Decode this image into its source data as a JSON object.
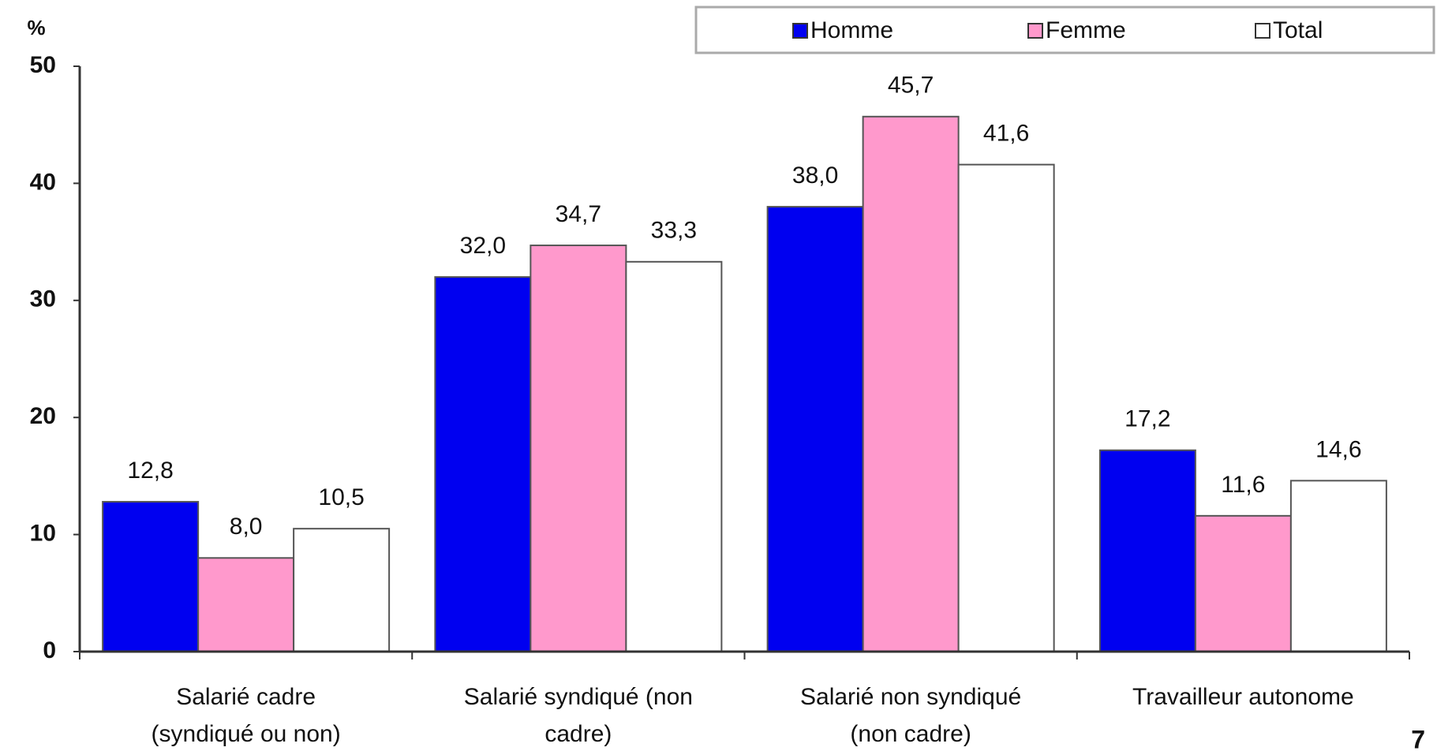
{
  "chart_data": {
    "type": "bar",
    "y_label": "%",
    "categories": [
      [
        "Salarié cadre",
        "(syndiqué ou non)"
      ],
      [
        "Salarié syndiqué (non",
        "cadre)"
      ],
      [
        "Salarié non syndiqué",
        "(non cadre)"
      ],
      [
        "Travailleur autonome"
      ]
    ],
    "series": [
      {
        "name": "Homme",
        "color": "#0000f0",
        "values": [
          12.8,
          32.0,
          38.0,
          17.2
        ],
        "value_labels": [
          "12,8",
          "32,0",
          "38,0",
          "17,2"
        ]
      },
      {
        "name": "Femme",
        "color": "#ff99cc",
        "values": [
          8.0,
          34.7,
          45.7,
          11.6
        ],
        "value_labels": [
          "8,0",
          "34,7",
          "45,7",
          "11,6"
        ]
      },
      {
        "name": "Total",
        "color": "#ffffff",
        "values": [
          10.5,
          33.3,
          41.6,
          14.6
        ],
        "value_labels": [
          "10,5",
          "33,3",
          "41,6",
          "14,6"
        ]
      }
    ],
    "ylim": [
      0,
      50
    ],
    "yticks": [
      0,
      10,
      20,
      30,
      40,
      50
    ],
    "grid": false,
    "legend": "top-right",
    "page_number": "7"
  }
}
